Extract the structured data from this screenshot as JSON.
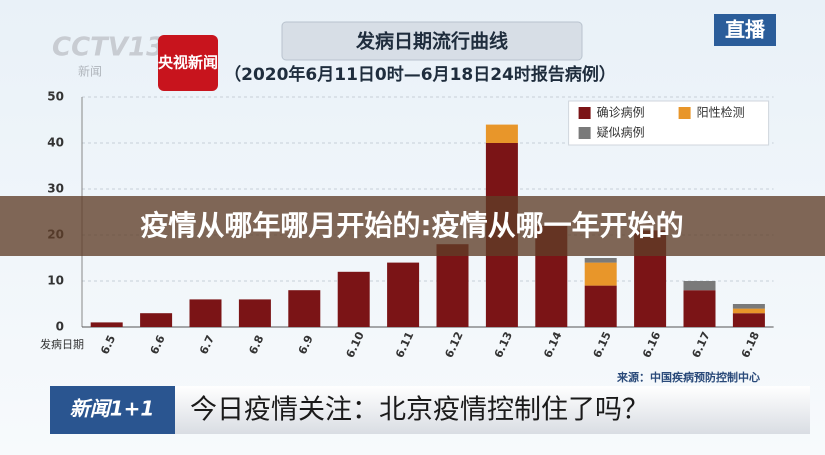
{
  "channel": {
    "logo": "CCTV13",
    "sub": "新闻",
    "app": "央视新闻",
    "live": "直播"
  },
  "overlay_title": "疫情从哪年哪月开始的:疫情从哪一年开始的",
  "chart_data": {
    "type": "bar",
    "stacked": true,
    "title": "发病日期流行曲线",
    "subtitle": "（2020年6月11日0时—6月18日24时报告病例）",
    "x_label": "发病日期",
    "source": "来源：中国疾病预防控制中心",
    "categories": [
      "6.5",
      "6.6",
      "6.7",
      "6.8",
      "6.9",
      "6.10",
      "6.11",
      "6.12",
      "6.13",
      "6.14",
      "6.15",
      "6.16",
      "6.17",
      "6.18"
    ],
    "series": [
      {
        "name": "确诊病例",
        "color": "#7b1416",
        "values": [
          1,
          3,
          6,
          6,
          8,
          12,
          14,
          18,
          40,
          22,
          9,
          21,
          8,
          3
        ]
      },
      {
        "name": "阳性检测",
        "color": "#e8962a",
        "values": [
          0,
          0,
          0,
          0,
          0,
          0,
          0,
          0,
          4,
          0,
          5,
          0,
          0,
          1
        ]
      },
      {
        "name": "疑似病例",
        "color": "#7a7a7a",
        "values": [
          0,
          0,
          0,
          0,
          0,
          0,
          0,
          0,
          0,
          0,
          1,
          0,
          2,
          1
        ]
      }
    ],
    "ylim": [
      0,
      50
    ],
    "yticks": [
      0,
      10,
      20,
      30,
      40,
      50
    ],
    "grid": true,
    "legend": "top-right"
  },
  "ticker": {
    "program": "新闻1+1",
    "headline": "今日疫情关注：北京疫情控制住了吗？"
  }
}
